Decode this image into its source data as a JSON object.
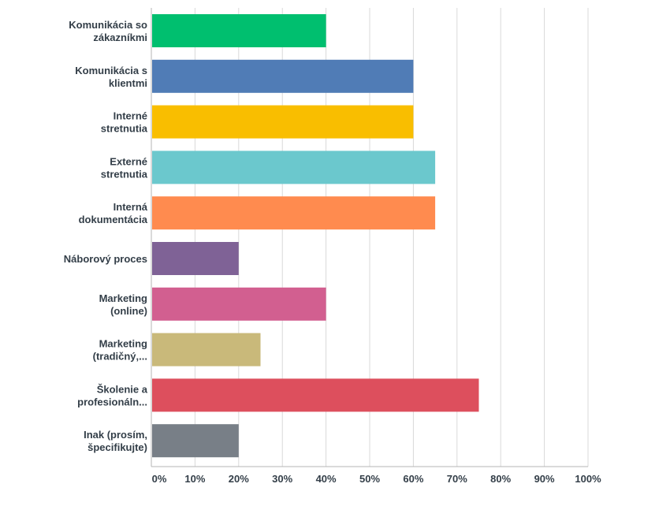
{
  "chart_data": {
    "type": "bar",
    "orientation": "horizontal",
    "categories": [
      [
        "Komunikácia so",
        "zákazníkmi"
      ],
      [
        "Komunikácia s",
        "klientmi"
      ],
      [
        "Interné",
        "stretnutia"
      ],
      [
        "Externé",
        "stretnutia"
      ],
      [
        "Interná",
        "dokumentácia"
      ],
      [
        "Náborový proces"
      ],
      [
        "Marketing",
        "(online)"
      ],
      [
        "Marketing",
        "(tradičný,..."
      ],
      [
        "Školenie a",
        "profesionáln..."
      ],
      [
        "Inak (prosím,",
        "špecifikujte)"
      ]
    ],
    "values": [
      40,
      60,
      60,
      65,
      65,
      20,
      40,
      25,
      75,
      20
    ],
    "colors": [
      "#00bf6f",
      "#507cb6",
      "#f9be00",
      "#6bc8cd",
      "#ff8b4f",
      "#7f6296",
      "#d25f90",
      "#c9b97a",
      "#dd4f5d",
      "#787f87"
    ],
    "xlim": [
      0,
      100
    ],
    "xticks": [
      "0%",
      "10%",
      "20%",
      "30%",
      "40%",
      "50%",
      "60%",
      "70%",
      "80%",
      "90%",
      "100%"
    ],
    "grid": true,
    "legend": "none",
    "gridline_color": "#d9d9d9",
    "axis_color": "#b5b5b5"
  }
}
